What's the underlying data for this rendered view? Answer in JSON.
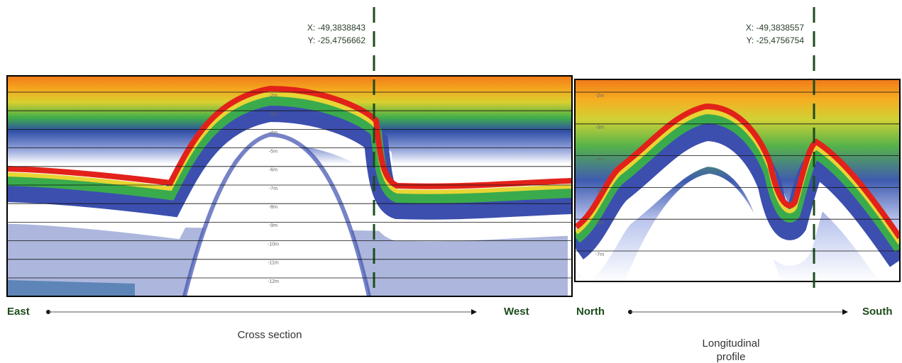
{
  "panels": [
    {
      "coordinates": {
        "x": "X: -49,3838843",
        "y": "Y: -25,4756662"
      },
      "depth_labels": [
        "-2m",
        "-3m",
        "-4m",
        "-5m",
        "-6m",
        "-7m",
        "-8m",
        "-9m",
        "-10m",
        "-11m",
        "-12m"
      ],
      "axis": {
        "start": "East",
        "end": "West"
      },
      "caption": [
        "Cross section"
      ]
    },
    {
      "coordinates": {
        "x": "X: -49,3838557",
        "y": "Y: -25,4756754"
      },
      "depth_labels": [
        "-2m",
        "-3m",
        "-4m",
        "-5m",
        "-6m",
        "-7m"
      ],
      "axis": {
        "start": "North",
        "end": "South"
      },
      "caption": [
        "Longitudinal",
        "profile"
      ]
    }
  ]
}
